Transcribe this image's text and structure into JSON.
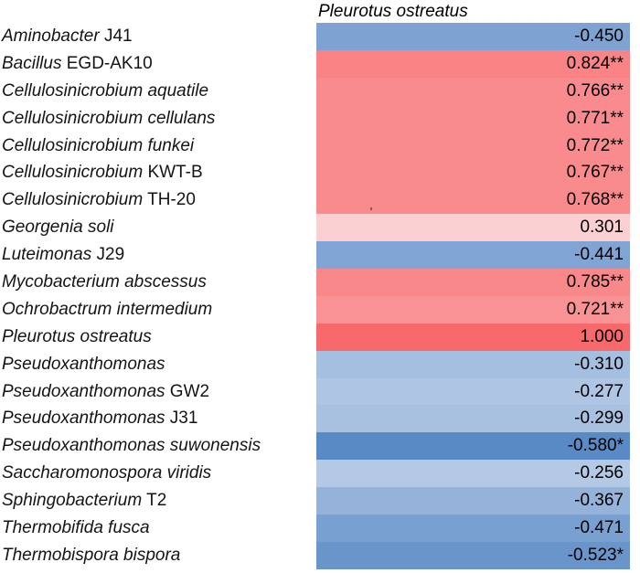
{
  "header": {
    "column_label": "Pleurotus ostreatus"
  },
  "chart_data": {
    "type": "heatmap",
    "title": "Pleurotus ostreatus",
    "columns": [
      "Pleurotus ostreatus"
    ],
    "colormap": {
      "min_color": "#5A8AC6",
      "mid_color": "#FCFCFF",
      "max_color": "#F8696B",
      "min_value": -0.58,
      "mid_value": 0,
      "max_value": 1.0
    },
    "legend": "none",
    "rows": [
      {
        "genus": "Aminobacter",
        "strain": " J41",
        "value": -0.45,
        "display": "-0.450",
        "color": "#7EA3D2"
      },
      {
        "genus": "Bacillus",
        "strain": " EGD-AK10",
        "value": 0.824,
        "display": "0.824**",
        "color": "#F98385"
      },
      {
        "genus": "Cellulosinicrobium aquatile",
        "strain": "",
        "value": 0.766,
        "display": "0.766**",
        "color": "#F98B8E"
      },
      {
        "genus": "Cellulosinicrobium cellulans",
        "strain": "",
        "value": 0.771,
        "display": "0.771**",
        "color": "#F98A8D"
      },
      {
        "genus": "Cellulosinicrobium funkei",
        "strain": "",
        "value": 0.772,
        "display": "0.772**",
        "color": "#F98A8D"
      },
      {
        "genus": "Cellulosinicrobium",
        "strain": " KWT-B",
        "value": 0.767,
        "display": "0.767**",
        "color": "#F98B8D"
      },
      {
        "genus": "Cellulosinicrobium",
        "strain": " TH-20",
        "value": 0.768,
        "display": "0.768**",
        "color": "#F98B8D"
      },
      {
        "genus": "Georgenia soli",
        "strain": "",
        "value": 0.301,
        "display": "0.301",
        "color": "#FBD0D3"
      },
      {
        "genus": "Luteimonas",
        "strain": " J29",
        "value": -0.441,
        "display": "-0.441",
        "color": "#80A4D3"
      },
      {
        "genus": "Mycobacterium abscessus",
        "strain": "",
        "value": 0.785,
        "display": "0.785**",
        "color": "#F9888B"
      },
      {
        "genus": "Ochrobactrum intermedium",
        "strain": "",
        "value": 0.721,
        "display": "0.721**",
        "color": "#F99294"
      },
      {
        "genus": "Pleurotus ostreatus",
        "strain": "",
        "value": 1.0,
        "display": "1.000",
        "color": "#F8696B"
      },
      {
        "genus": "Pseudoxanthomonas",
        "strain": "",
        "value": -0.31,
        "display": "-0.310",
        "color": "#A5BFE0"
      },
      {
        "genus": "Pseudoxanthomonas",
        "strain": " GW2",
        "value": -0.277,
        "display": "-0.277",
        "color": "#AEC5E3"
      },
      {
        "genus": "Pseudoxanthomonas",
        "strain": " J31",
        "value": -0.299,
        "display": "-0.299",
        "color": "#A8C1E1"
      },
      {
        "genus": "Pseudoxanthomonas suwonensis",
        "strain": "",
        "value": -0.58,
        "display": "-0.580*",
        "color": "#5A8AC6"
      },
      {
        "genus": "Saccharomonospora viridis",
        "strain": "",
        "value": -0.256,
        "display": "-0.256",
        "color": "#B4C9E5"
      },
      {
        "genus": "Sphingobacterium",
        "strain": " T2",
        "value": -0.367,
        "display": "-0.367",
        "color": "#95B3DA"
      },
      {
        "genus": "Thermobifida fusca",
        "strain": "",
        "value": -0.471,
        "display": "-0.471",
        "color": "#78A0D0"
      },
      {
        "genus": "Thermobispora bispora",
        "strain": "",
        "value": -0.523,
        "display": "-0.523*",
        "color": "#6A95CB"
      }
    ]
  }
}
